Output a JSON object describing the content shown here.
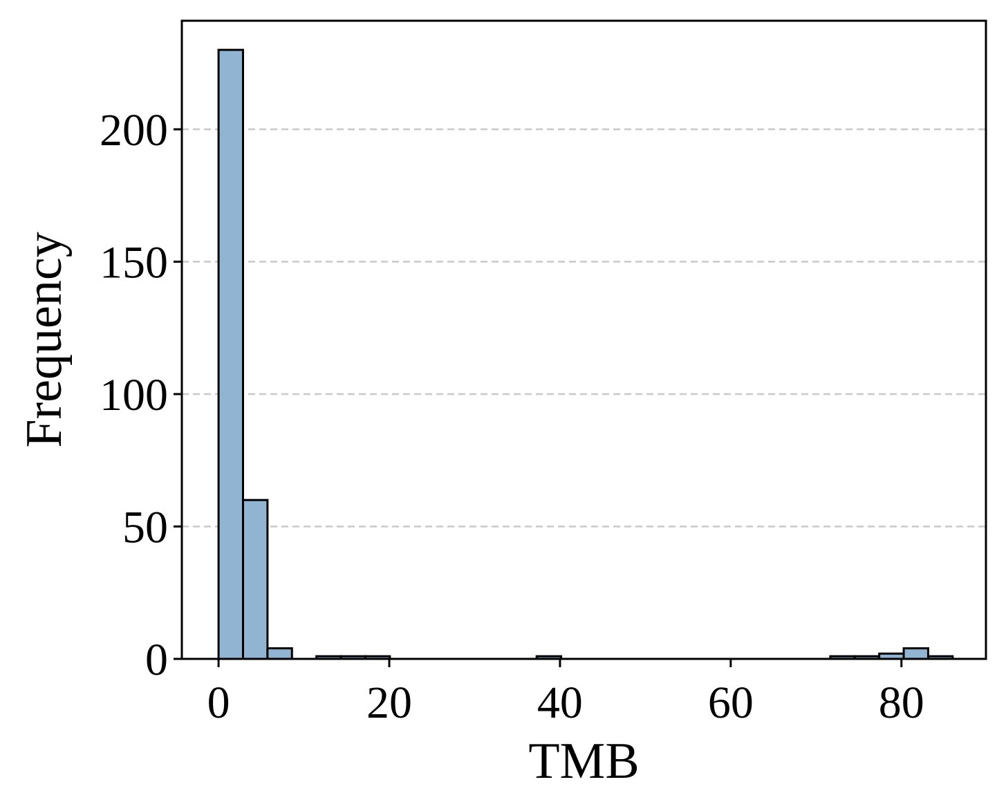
{
  "chart_data": {
    "type": "bar",
    "subtype": "histogram",
    "xlabel": "TMB",
    "ylabel": "Frequency",
    "bar_color": "#92b4d3",
    "edge_color": "#000000",
    "grid": "y-dashed",
    "xlim": [
      -4.3,
      89.9
    ],
    "ylim": [
      0,
      241
    ],
    "xticks": [
      0,
      20,
      40,
      60,
      80
    ],
    "yticks": [
      0,
      50,
      100,
      150,
      200
    ],
    "bin_edges": [
      0,
      2.867,
      5.733,
      8.6,
      11.467,
      14.333,
      17.2,
      20.067,
      22.933,
      25.8,
      28.667,
      31.533,
      34.4,
      37.267,
      40.133,
      43,
      45.867,
      48.733,
      51.6,
      54.467,
      57.333,
      60.2,
      63.067,
      65.933,
      68.8,
      71.667,
      74.533,
      77.4,
      80.267,
      83.133,
      86
    ],
    "values": [
      230,
      60,
      4,
      0,
      1,
      1,
      1,
      0,
      0,
      0,
      0,
      0,
      0,
      1,
      0,
      0,
      0,
      0,
      0,
      0,
      0,
      0,
      0,
      0,
      0,
      1,
      1,
      2,
      4,
      1
    ]
  }
}
